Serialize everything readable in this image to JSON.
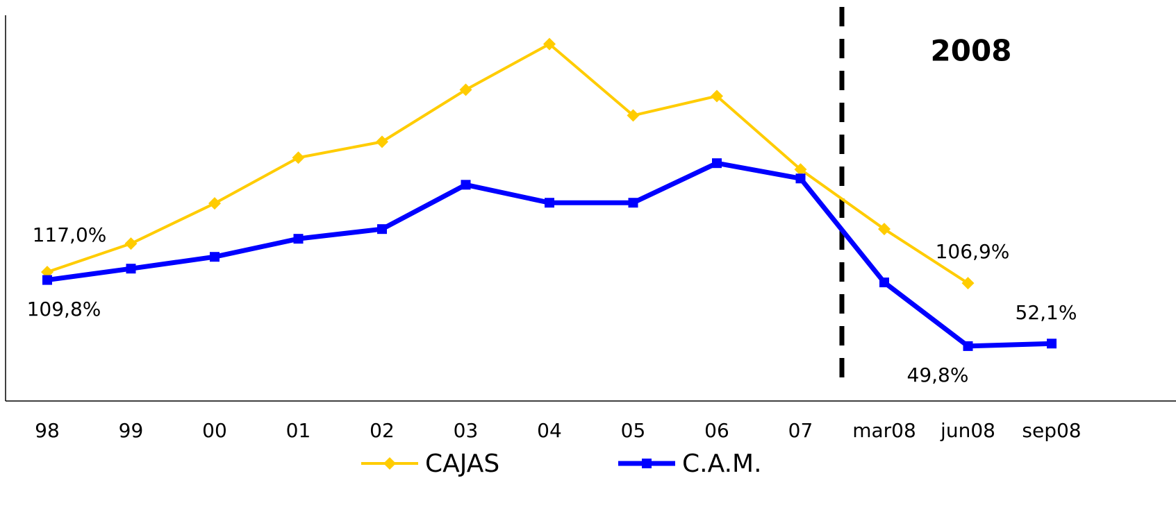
{
  "chart_data": {
    "type": "line",
    "annotation": "2008",
    "categories": [
      "98",
      "99",
      "00",
      "01",
      "02",
      "03",
      "04",
      "05",
      "06",
      "07",
      "mar08",
      "jun08",
      "sep08"
    ],
    "series": [
      {
        "name": "CAJAS",
        "color": "#FFCC00",
        "values": [
          117.0,
          142.8,
          179.3,
          220.8,
          235.2,
          282.4,
          323.9,
          259.1,
          276.7,
          210.1,
          156.0,
          106.9,
          null
        ],
        "value_labels": [
          "117,0%",
          null,
          null,
          null,
          null,
          null,
          null,
          null,
          null,
          null,
          null,
          "106,9%",
          null
        ]
      },
      {
        "name": "C.A.M.",
        "color": "#0000FF",
        "values": [
          109.8,
          120.1,
          130.8,
          147.2,
          156.0,
          196.2,
          179.9,
          179.9,
          215.8,
          201.9,
          107.6,
          49.8,
          52.1
        ],
        "value_labels": [
          "109,8%",
          null,
          null,
          null,
          null,
          null,
          null,
          null,
          null,
          null,
          null,
          "49,8%",
          "52,1%"
        ]
      }
    ],
    "ylim": [
      0,
      350
    ]
  }
}
